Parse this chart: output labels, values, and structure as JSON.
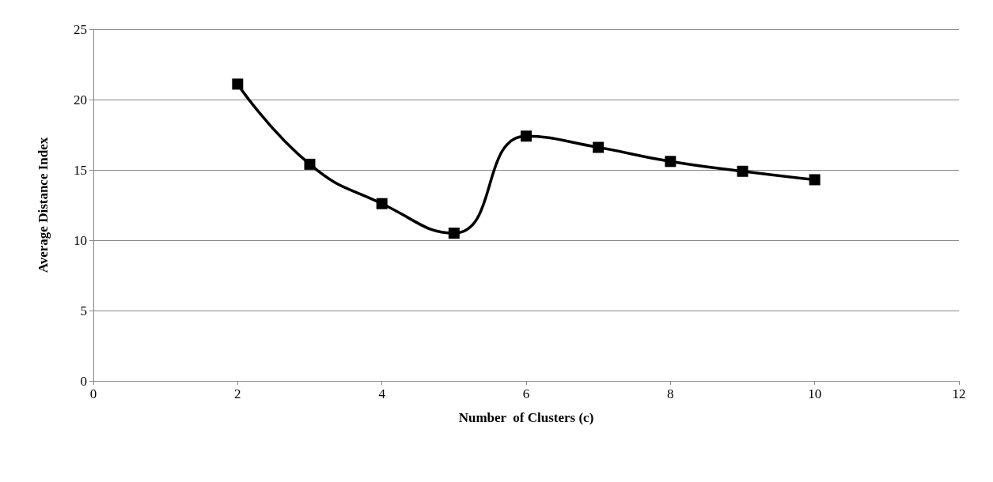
{
  "chart_data": {
    "type": "line",
    "xlabel": "Number  of Clusters (c)",
    "ylabel": "Average Distance Index",
    "x": [
      2,
      3,
      4,
      5,
      6,
      7,
      8,
      9,
      10
    ],
    "series": [
      {
        "color": "#000000",
        "values": [
          21.1,
          15.4,
          12.6,
          10.5,
          17.4,
          16.6,
          15.6,
          14.9,
          14.3
        ]
      }
    ],
    "xlim": [
      0,
      12
    ],
    "xticks": [
      0,
      2,
      4,
      6,
      8,
      10,
      12
    ],
    "ylim": [
      0,
      25
    ],
    "yticks": [
      0,
      5,
      10,
      15,
      20,
      25
    ],
    "grid": "y",
    "marker": "square",
    "line_style": "solid"
  }
}
